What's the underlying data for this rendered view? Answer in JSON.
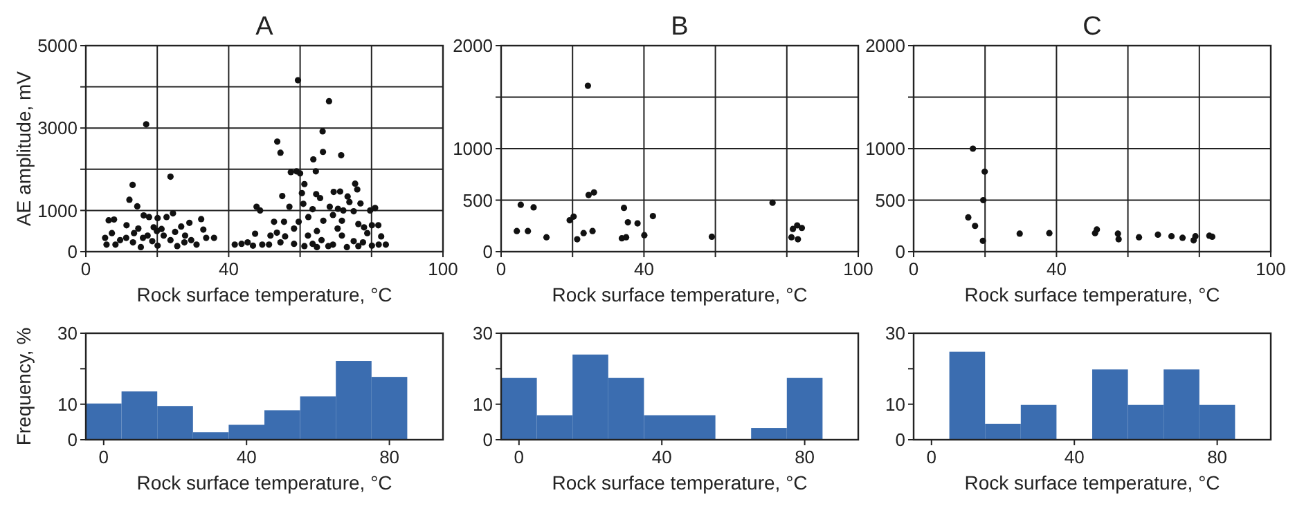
{
  "chart_data": [
    {
      "type": "scatter",
      "title": "A",
      "xlabel": "Rock surface temperature, °C",
      "ylabel": "AE amplitude, mV",
      "xlim": [
        0,
        100
      ],
      "ylim": [
        0,
        5000
      ],
      "xticks": [
        0,
        {
          "value": 20,
          "label": null
        },
        40,
        {
          "value": 60,
          "label": null
        },
        {
          "value": 80,
          "label": null
        },
        100
      ],
      "yticks": [
        0,
        1000,
        {
          "value": 2000,
          "label": null
        },
        3000,
        {
          "value": 4000,
          "label": null
        },
        5000
      ],
      "grid": true,
      "marker": "circle",
      "color": "#111111",
      "x": [
        16.9,
        23.7,
        13.1,
        12.2,
        14.4,
        16.2,
        17.7,
        20.1,
        22.6,
        24.4,
        6.4,
        7.9,
        11.4,
        14.7,
        19,
        21.2,
        26.7,
        29,
        32.3,
        32.9,
        33.7,
        35.9,
        5.4,
        5.8,
        7.3,
        8.3,
        9.6,
        11.3,
        13.2,
        15.4,
        17.3,
        18.6,
        20.1,
        21.8,
        23.7,
        25.6,
        27.6,
        29.5,
        31,
        13.5,
        16,
        19.9,
        25,
        27.8,
        59.4,
        68.1,
        66.3,
        53.6,
        54.5,
        71.5,
        66.4,
        63.7,
        64.4,
        57.4,
        59,
        60,
        61.2,
        75.4,
        76,
        69.4,
        71.2,
        73.3,
        55,
        60.5,
        64.5,
        65.6,
        76.9,
        73.8,
        48.8,
        47.8,
        57,
        60.9,
        63.5,
        68.3,
        70.6,
        72.1,
        75,
        79.6,
        81,
        62.3,
        69.2,
        52.7,
        55.5,
        59.6,
        66.5,
        71.7,
        76.3,
        77.9,
        80.1,
        81.9,
        58.3,
        64.7,
        70.5,
        53.5,
        47.4,
        51.7,
        55.8,
        62.2,
        71.7,
        78.8,
        82.7,
        54.5,
        58.3,
        63.5,
        66,
        69.2,
        75,
        77.6,
        41.7,
        43.6,
        45.3,
        46.8,
        49.4,
        51.3,
        61.2,
        64.7,
        67.9,
        73.1,
        76.3,
        80.1,
        82,
        84
      ],
      "values": [
        3090,
        1820,
        1620,
        1260,
        1100,
        880,
        840,
        815,
        840,
        930,
        760,
        780,
        640,
        560,
        590,
        550,
        610,
        700,
        790,
        535,
        335,
        335,
        335,
        170,
        450,
        170,
        280,
        335,
        225,
        110,
        390,
        255,
        145,
        390,
        280,
        135,
        225,
        280,
        170,
        450,
        335,
        500,
        480,
        390,
        4160,
        3650,
        2920,
        2670,
        2400,
        2340,
        2420,
        2240,
        1950,
        1930,
        1950,
        1900,
        1640,
        1650,
        1510,
        1450,
        1460,
        1340,
        1350,
        1420,
        1395,
        1300,
        1170,
        1205,
        1000,
        1090,
        1090,
        1160,
        1030,
        1090,
        1040,
        1000,
        980,
        1000,
        1060,
        840,
        890,
        725,
        725,
        725,
        750,
        750,
        670,
        590,
        640,
        640,
        560,
        500,
        560,
        460,
        435,
        390,
        370,
        390,
        390,
        450,
        370,
        225,
        190,
        190,
        280,
        170,
        255,
        225,
        170,
        190,
        225,
        145,
        170,
        170,
        135,
        110,
        135,
        110,
        135,
        145,
        170,
        170
      ]
    },
    {
      "type": "scatter",
      "title": "B",
      "xlabel": "Rock surface temperature, °C",
      "xlim": [
        0,
        100
      ],
      "ylim": [
        0,
        2000
      ],
      "xticks": [
        0,
        {
          "value": 20,
          "label": null
        },
        40,
        {
          "value": 60,
          "label": null
        },
        {
          "value": 80,
          "label": null
        },
        100
      ],
      "yticks": [
        0,
        500,
        1000,
        {
          "value": 1500,
          "label": null
        },
        2000
      ],
      "grid": true,
      "marker": "circle",
      "color": "#111111",
      "x": [
        4.4,
        5.5,
        7.5,
        9.1,
        12.7,
        19.2,
        20.3,
        21.3,
        23.1,
        24.3,
        24.5,
        25.6,
        26,
        33.8,
        34.4,
        35,
        35.5,
        38.2,
        40.1,
        42.5,
        59,
        76,
        81.3,
        81.7,
        82.9,
        83.1,
        84.2
      ],
      "values": [
        200,
        455,
        200,
        430,
        140,
        305,
        340,
        120,
        180,
        1610,
        550,
        200,
        575,
        130,
        425,
        140,
        285,
        275,
        160,
        345,
        145,
        475,
        140,
        220,
        255,
        120,
        230
      ]
    },
    {
      "type": "scatter",
      "title": "C",
      "xlabel": "Rock surface temperature, °C",
      "xlim": [
        0,
        100
      ],
      "ylim": [
        0,
        2000
      ],
      "xticks": [
        0,
        {
          "value": 20,
          "label": null
        },
        40,
        {
          "value": 60,
          "label": null
        },
        {
          "value": 80,
          "label": null
        },
        100
      ],
      "yticks": [
        0,
        500,
        1000,
        {
          "value": 1500,
          "label": null
        },
        2000
      ],
      "grid": true,
      "marker": "circle",
      "color": "#111111",
      "x": [
        15.3,
        16.6,
        17.2,
        19.4,
        19.5,
        19.9,
        29.7,
        38,
        50.8,
        51.3,
        57.2,
        57.4,
        63.1,
        68.4,
        72.2,
        75.3,
        78.4,
        78.9,
        82.8,
        83.6
      ],
      "values": [
        333,
        1000,
        250,
        105,
        500,
        777,
        175,
        180,
        180,
        215,
        175,
        120,
        140,
        165,
        150,
        135,
        110,
        150,
        155,
        145
      ]
    },
    {
      "type": "histogram",
      "xlabel": "Rock surface temperature, °C",
      "ylabel": "Frequency, %",
      "xlim": [
        -5,
        95
      ],
      "ylim": [
        0,
        30
      ],
      "xticks": [
        0,
        40,
        80
      ],
      "yticks": [
        0,
        10,
        {
          "value": 20,
          "label": null
        },
        30
      ],
      "color": "#3b6db0",
      "bins": [
        -5,
        5,
        15,
        25,
        35,
        45,
        55,
        65,
        75,
        85
      ],
      "values": [
        10.2,
        13.6,
        9.5,
        2.1,
        4.2,
        8.3,
        12.2,
        22.2,
        17.7
      ]
    },
    {
      "type": "histogram",
      "xlabel": "Rock surface temperature, °C",
      "xlim": [
        -5,
        95
      ],
      "ylim": [
        0,
        30
      ],
      "xticks": [
        0,
        40,
        80
      ],
      "yticks": [
        0,
        10,
        {
          "value": 20,
          "label": null
        },
        30
      ],
      "color": "#3b6db0",
      "bins": [
        -5,
        5,
        15,
        25,
        35,
        45,
        55,
        65,
        75,
        85
      ],
      "values": [
        17.4,
        6.9,
        24,
        17.4,
        6.9,
        6.9,
        0,
        3.3,
        17.4
      ]
    },
    {
      "type": "histogram",
      "xlabel": "Rock surface temperature, °C",
      "xlim": [
        -5,
        95
      ],
      "ylim": [
        0,
        30
      ],
      "xticks": [
        0,
        40,
        80
      ],
      "yticks": [
        0,
        10,
        {
          "value": 20,
          "label": null
        },
        30
      ],
      "color": "#3b6db0",
      "bins": [
        -5,
        5,
        15,
        25,
        35,
        45,
        55,
        65,
        75,
        85
      ],
      "values": [
        0,
        24.8,
        4.5,
        9.8,
        0,
        19.8,
        9.8,
        19.8,
        9.8
      ]
    }
  ]
}
